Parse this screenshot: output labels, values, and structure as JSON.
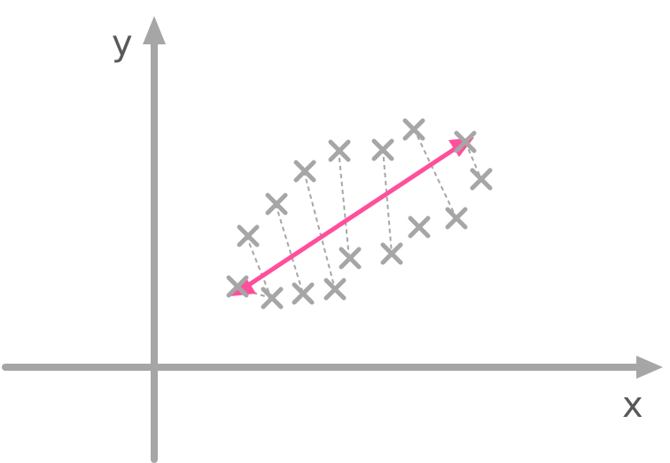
{
  "axes": {
    "x_label": "x",
    "y_label": "y"
  },
  "colors": {
    "axis": "#a6a6a6",
    "label": "#595959",
    "principal_direction": "#ff4f9a",
    "background": "#ffffff"
  },
  "icons": {
    "data_point": "cross-icon",
    "direction_arrow": "double-headed-arrow-icon"
  }
}
